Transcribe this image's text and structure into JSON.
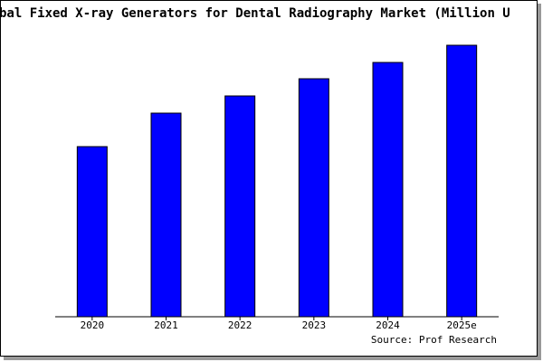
{
  "chart_data": {
    "type": "bar",
    "title": "bal Fixed X-ray Generators for Dental Radiography Market (Million U",
    "categories": [
      "2020",
      "2021",
      "2022",
      "2023",
      "2024",
      "2025e"
    ],
    "values": [
      188,
      225,
      244,
      263,
      281,
      300
    ],
    "color": "#0000ff",
    "source": "Source: Prof Research"
  }
}
